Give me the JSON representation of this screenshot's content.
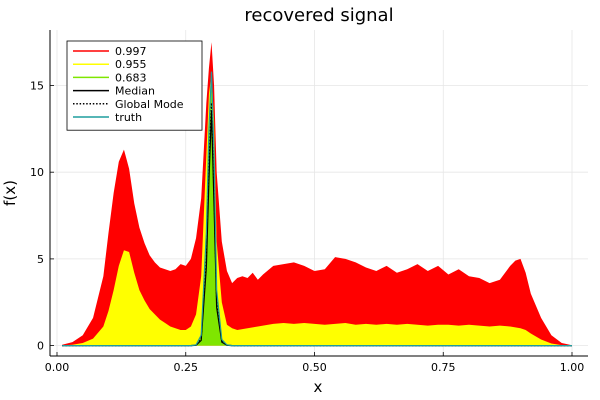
{
  "chart_data": {
    "type": "area",
    "title": "recovered signal",
    "xlabel": "x",
    "ylabel": "f(x)",
    "xlim": [
      0.0,
      1.0
    ],
    "ylim": [
      -0.6,
      18.2
    ],
    "x_ticks": [
      {
        "value": 0.0,
        "label": "0.00"
      },
      {
        "value": 0.25,
        "label": "0.25"
      },
      {
        "value": 0.5,
        "label": "0.50"
      },
      {
        "value": 0.75,
        "label": "0.75"
      },
      {
        "value": 1.0,
        "label": "1.00"
      }
    ],
    "y_ticks": [
      {
        "value": 0,
        "label": "0"
      },
      {
        "value": 5,
        "label": "5"
      },
      {
        "value": 10,
        "label": "10"
      },
      {
        "value": 15,
        "label": "15"
      }
    ],
    "grid": true,
    "legend_position": "top-left",
    "x": [
      0.01,
      0.03,
      0.05,
      0.07,
      0.09,
      0.1,
      0.11,
      0.12,
      0.13,
      0.14,
      0.15,
      0.16,
      0.17,
      0.18,
      0.19,
      0.2,
      0.21,
      0.22,
      0.23,
      0.24,
      0.25,
      0.26,
      0.27,
      0.28,
      0.29,
      0.295,
      0.3,
      0.305,
      0.31,
      0.32,
      0.33,
      0.34,
      0.35,
      0.36,
      0.37,
      0.38,
      0.39,
      0.4,
      0.42,
      0.44,
      0.46,
      0.48,
      0.5,
      0.52,
      0.54,
      0.56,
      0.58,
      0.6,
      0.62,
      0.64,
      0.66,
      0.68,
      0.7,
      0.72,
      0.74,
      0.76,
      0.78,
      0.8,
      0.82,
      0.84,
      0.86,
      0.88,
      0.89,
      0.9,
      0.91,
      0.92,
      0.94,
      0.96,
      0.98,
      1.0
    ],
    "bands": [
      {
        "name": "0.997",
        "color": "#ff0000",
        "lower": [
          0,
          0,
          0,
          0,
          0,
          0,
          0,
          0,
          0,
          0,
          0,
          0,
          0,
          0,
          0,
          0,
          0,
          0,
          0,
          0,
          0,
          0,
          0,
          0,
          0,
          0,
          0,
          0,
          0,
          0,
          0,
          0,
          0,
          0,
          0,
          0,
          0,
          0,
          0,
          0,
          0,
          0,
          0,
          0,
          0,
          0,
          0,
          0,
          0,
          0,
          0,
          0,
          0,
          0,
          0,
          0,
          0,
          0,
          0,
          0,
          0,
          0,
          0,
          0,
          0,
          0,
          0,
          0,
          0,
          0
        ],
        "upper": [
          0.05,
          0.2,
          0.6,
          1.6,
          4.0,
          6.5,
          8.8,
          10.6,
          11.3,
          10.2,
          8.2,
          6.8,
          5.9,
          5.2,
          4.8,
          4.5,
          4.4,
          4.3,
          4.4,
          4.7,
          4.6,
          5.0,
          6.2,
          8.5,
          14.0,
          16.0,
          17.5,
          15.0,
          10.0,
          6.0,
          4.3,
          3.6,
          3.9,
          4.0,
          3.9,
          4.2,
          3.8,
          4.1,
          4.6,
          4.7,
          4.8,
          4.6,
          4.3,
          4.4,
          5.1,
          5.0,
          4.8,
          4.5,
          4.3,
          4.6,
          4.2,
          4.4,
          4.7,
          4.3,
          4.6,
          4.1,
          4.4,
          4.0,
          3.9,
          3.6,
          3.8,
          4.6,
          4.9,
          5.0,
          4.2,
          3.0,
          1.6,
          0.6,
          0.15,
          0.02
        ]
      },
      {
        "name": "0.955",
        "color": "#ffff00",
        "lower": [
          0,
          0,
          0,
          0,
          0,
          0,
          0,
          0,
          0,
          0,
          0,
          0,
          0,
          0,
          0,
          0,
          0,
          0,
          0,
          0,
          0,
          0,
          0,
          0,
          0,
          0,
          0,
          0,
          0,
          0,
          0,
          0,
          0,
          0,
          0,
          0,
          0,
          0,
          0,
          0,
          0,
          0,
          0,
          0,
          0,
          0,
          0,
          0,
          0,
          0,
          0,
          0,
          0,
          0,
          0,
          0,
          0,
          0,
          0,
          0,
          0,
          0,
          0,
          0,
          0,
          0,
          0,
          0,
          0,
          0
        ],
        "upper": [
          0.01,
          0.05,
          0.15,
          0.4,
          1.1,
          2.0,
          3.2,
          4.6,
          5.5,
          5.4,
          4.2,
          3.2,
          2.6,
          2.1,
          1.8,
          1.5,
          1.3,
          1.1,
          1.0,
          0.9,
          0.9,
          1.1,
          1.8,
          4.0,
          11.0,
          14.5,
          15.7,
          13.0,
          6.0,
          2.5,
          1.2,
          1.0,
          0.9,
          0.95,
          1.0,
          1.05,
          1.1,
          1.15,
          1.25,
          1.3,
          1.25,
          1.3,
          1.25,
          1.2,
          1.25,
          1.3,
          1.2,
          1.25,
          1.2,
          1.25,
          1.2,
          1.25,
          1.2,
          1.15,
          1.2,
          1.2,
          1.15,
          1.2,
          1.15,
          1.1,
          1.15,
          1.1,
          1.05,
          1.0,
          0.9,
          0.7,
          0.35,
          0.12,
          0.03,
          0.0
        ]
      },
      {
        "name": "0.683",
        "color": "#7fe600",
        "lower": [
          0,
          0,
          0,
          0,
          0,
          0,
          0,
          0,
          0,
          0,
          0,
          0,
          0,
          0,
          0,
          0,
          0,
          0,
          0,
          0,
          0,
          0,
          0,
          0,
          0,
          0,
          0,
          0,
          0,
          0,
          0,
          0,
          0,
          0,
          0,
          0,
          0,
          0,
          0,
          0,
          0,
          0,
          0,
          0,
          0,
          0,
          0,
          0,
          0,
          0,
          0,
          0,
          0,
          0,
          0,
          0,
          0,
          0,
          0,
          0,
          0,
          0,
          0,
          0,
          0,
          0,
          0,
          0,
          0,
          0
        ],
        "upper": [
          0,
          0,
          0,
          0,
          0,
          0,
          0,
          0,
          0,
          0,
          0,
          0,
          0,
          0,
          0,
          0,
          0,
          0,
          0,
          0,
          0,
          0,
          0.05,
          0.5,
          6.0,
          12.0,
          15.2,
          10.0,
          3.0,
          0.3,
          0.05,
          0,
          0,
          0,
          0,
          0,
          0,
          0,
          0,
          0,
          0,
          0,
          0,
          0,
          0,
          0,
          0,
          0,
          0,
          0,
          0,
          0,
          0,
          0,
          0,
          0,
          0,
          0,
          0,
          0,
          0,
          0,
          0,
          0,
          0,
          0,
          0,
          0,
          0,
          0
        ]
      }
    ],
    "series": [
      {
        "name": "Median",
        "color": "#000000",
        "dash": "solid",
        "values": [
          0,
          0,
          0,
          0,
          0,
          0,
          0,
          0,
          0,
          0,
          0,
          0,
          0,
          0,
          0,
          0,
          0,
          0,
          0,
          0,
          0,
          0,
          0.02,
          0.3,
          4.5,
          9.5,
          13.5,
          8.0,
          2.2,
          0.2,
          0.02,
          0,
          0,
          0,
          0,
          0,
          0,
          0,
          0,
          0,
          0,
          0,
          0,
          0,
          0,
          0,
          0,
          0,
          0,
          0,
          0,
          0,
          0,
          0,
          0,
          0,
          0,
          0,
          0,
          0,
          0,
          0,
          0,
          0,
          0,
          0,
          0,
          0,
          0,
          0
        ]
      },
      {
        "name": "Global Mode",
        "color": "#000000",
        "dash": "dotted",
        "values": [
          0,
          0,
          0,
          0,
          0,
          0,
          0,
          0,
          0,
          0,
          0,
          0,
          0,
          0,
          0,
          0,
          0,
          0,
          0,
          0,
          0,
          0,
          0.03,
          0.4,
          5.0,
          10.5,
          14.0,
          8.6,
          2.5,
          0.25,
          0.03,
          0,
          0,
          0,
          0,
          0,
          0,
          0,
          0,
          0,
          0,
          0,
          0,
          0,
          0,
          0,
          0,
          0,
          0,
          0,
          0,
          0,
          0,
          0,
          0,
          0,
          0,
          0,
          0,
          0,
          0,
          0,
          0,
          0,
          0,
          0,
          0,
          0,
          0,
          0
        ]
      },
      {
        "name": "truth",
        "color": "#1f9e9e",
        "dash": "solid",
        "values": [
          0,
          0,
          0,
          0,
          0,
          0,
          0,
          0,
          0,
          0,
          0,
          0,
          0,
          0,
          0,
          0,
          0,
          0,
          0,
          0,
          0,
          0,
          0.04,
          0.6,
          6.5,
          12.5,
          15.8,
          11.0,
          3.2,
          0.35,
          0.04,
          0,
          0,
          0,
          0,
          0,
          0,
          0,
          0,
          0,
          0,
          0,
          0,
          0,
          0,
          0,
          0,
          0,
          0,
          0,
          0,
          0,
          0,
          0,
          0,
          0,
          0,
          0,
          0,
          0,
          0,
          0,
          0,
          0,
          0,
          0,
          0,
          0,
          0,
          0
        ]
      }
    ],
    "legend": [
      {
        "label": "0.997",
        "color": "#ff0000",
        "dash": "solid"
      },
      {
        "label": "0.955",
        "color": "#ffff00",
        "dash": "solid"
      },
      {
        "label": "0.683",
        "color": "#7fe600",
        "dash": "solid"
      },
      {
        "label": "Median",
        "color": "#000000",
        "dash": "solid"
      },
      {
        "label": "Global Mode",
        "color": "#000000",
        "dash": "dotted"
      },
      {
        "label": "truth",
        "color": "#1f9e9e",
        "dash": "solid"
      }
    ]
  }
}
